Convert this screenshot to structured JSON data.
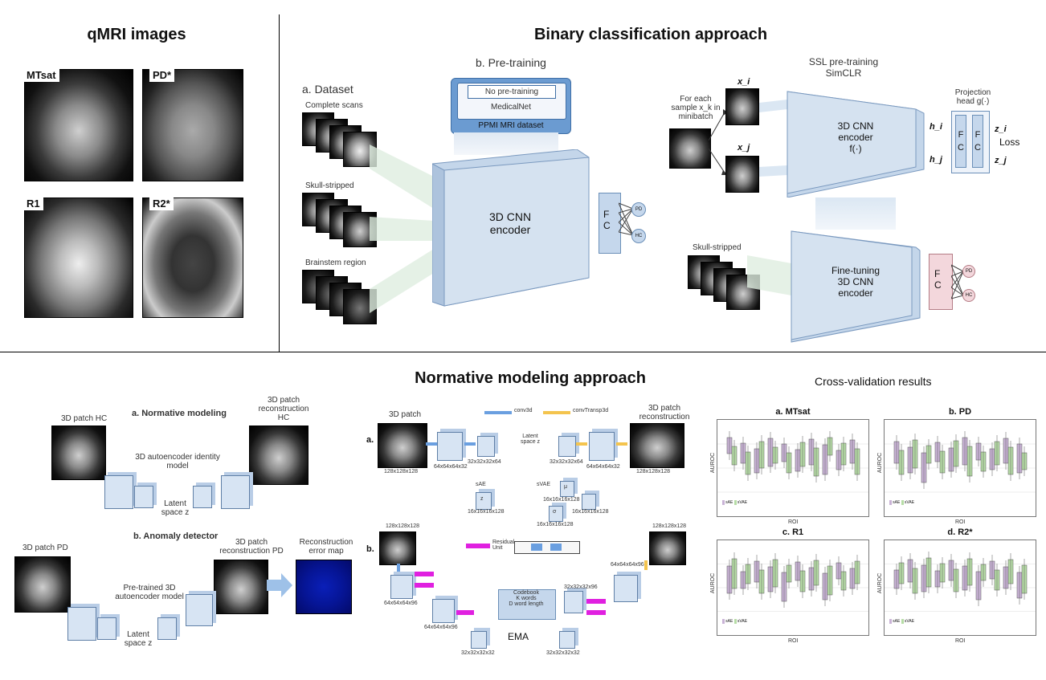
{
  "sections": {
    "qmri": {
      "title": "qMRI images",
      "labels": [
        "MTsat",
        "PD*",
        "R1",
        "R2*"
      ]
    },
    "binary": {
      "title": "Binary classification approach",
      "dataset": {
        "title": "a. Dataset",
        "items": [
          "Complete scans",
          "Skull-stripped",
          "Brainstem region"
        ]
      },
      "pretraining": {
        "title": "b. Pre-training",
        "options": [
          "No pre-training",
          "MedicalNet"
        ],
        "source": "PPMI MRI dataset"
      },
      "encoder": "3D CNN\nencoder",
      "fc": "F\nC",
      "outputs": [
        "PD",
        "HC"
      ],
      "ssl": {
        "title": "SSL pre-training\nSimCLR",
        "sample_text": "For each\nsample x_k in\nminibatch",
        "xi": "x_i",
        "xj": "x_j",
        "encoder": "3D CNN\nencoder\nf(·)",
        "hi": "h_i",
        "hj": "h_j",
        "projection": "Projection\nhead g(·)",
        "zi": "z_i",
        "zj": "z_j",
        "loss": "Loss",
        "skull": "Skull-stripped",
        "finetune": "Fine-tuning\n3D CNN\nencoder",
        "fc": "F\nC",
        "outputs": [
          "PD",
          "HC"
        ]
      }
    },
    "normative": {
      "title": "Normative modeling approach",
      "left": {
        "a_title": "a. Normative modeling",
        "patch_hc": "3D patch HC",
        "recon_hc": "3D patch\nreconstruction HC",
        "model": "3D autoencoder identity\nmodel",
        "latent": "Latent\nspace z",
        "b_title": "b. Anomaly detector",
        "patch_pd": "3D patch PD",
        "recon_pd": "3D patch\nreconstruction PD",
        "error": "Reconstruction\nerror map",
        "pretrained": "Pre-trained 3D\nautoencoder model",
        "latent2": "Latent\nspace z"
      },
      "right": {
        "legend": [
          "conv3d",
          "convTransp3d"
        ],
        "a": "a.",
        "b": "b.",
        "patch": "3D patch",
        "recon": "3D patch\nreconstruction",
        "dims_a": [
          "128x128x128",
          "64x64x64x32",
          "32x32x32x64",
          "Latent\nspace z",
          "32x32x32x64",
          "64x64x64x32",
          "128x128x128"
        ],
        "sae": "sAE",
        "svae": "sVAE",
        "sae_dim": "16x16x16x128",
        "svae_dims": [
          "16x16x16x128",
          "16x16x16x128",
          "16x16x16x128"
        ],
        "mu": "μ",
        "sigma": "σ",
        "z": "z",
        "residual": "Residual\nUnit",
        "codebook": "Codebook\nK words\nD word length",
        "ema": "EMA",
        "dims_b": [
          "128x128x128",
          "64x64x64x96",
          "64x64x64x96",
          "32x32x32x32",
          "32x32x32x32",
          "32x32x32x96",
          "64x64x64x96",
          "128x128x128"
        ]
      }
    },
    "cv": {
      "title": "Cross-validation results",
      "charts": [
        {
          "title": "a. MTsat",
          "ylabel": "AUROC",
          "xlabel": "ROI",
          "legend": [
            "sAE",
            "sVAE"
          ]
        },
        {
          "title": "b. PD",
          "ylabel": "AUROC",
          "xlabel": "ROI",
          "legend": [
            "sAE",
            "sVAE"
          ]
        },
        {
          "title": "c. R1",
          "ylabel": "AUROC",
          "xlabel": "ROI",
          "legend": [
            "sAE",
            "sVAE"
          ]
        },
        {
          "title": "d. R2*",
          "ylabel": "AUROC",
          "xlabel": "ROI",
          "legend": [
            "sAE",
            "sVAE"
          ]
        }
      ]
    }
  },
  "colors": {
    "encoder": "#c4d6ea",
    "pretrain": "#6b9bd1",
    "fc_pink": "#f3d7dc",
    "box_purple": "#c9b3d6",
    "box_green": "#b6dca6"
  }
}
